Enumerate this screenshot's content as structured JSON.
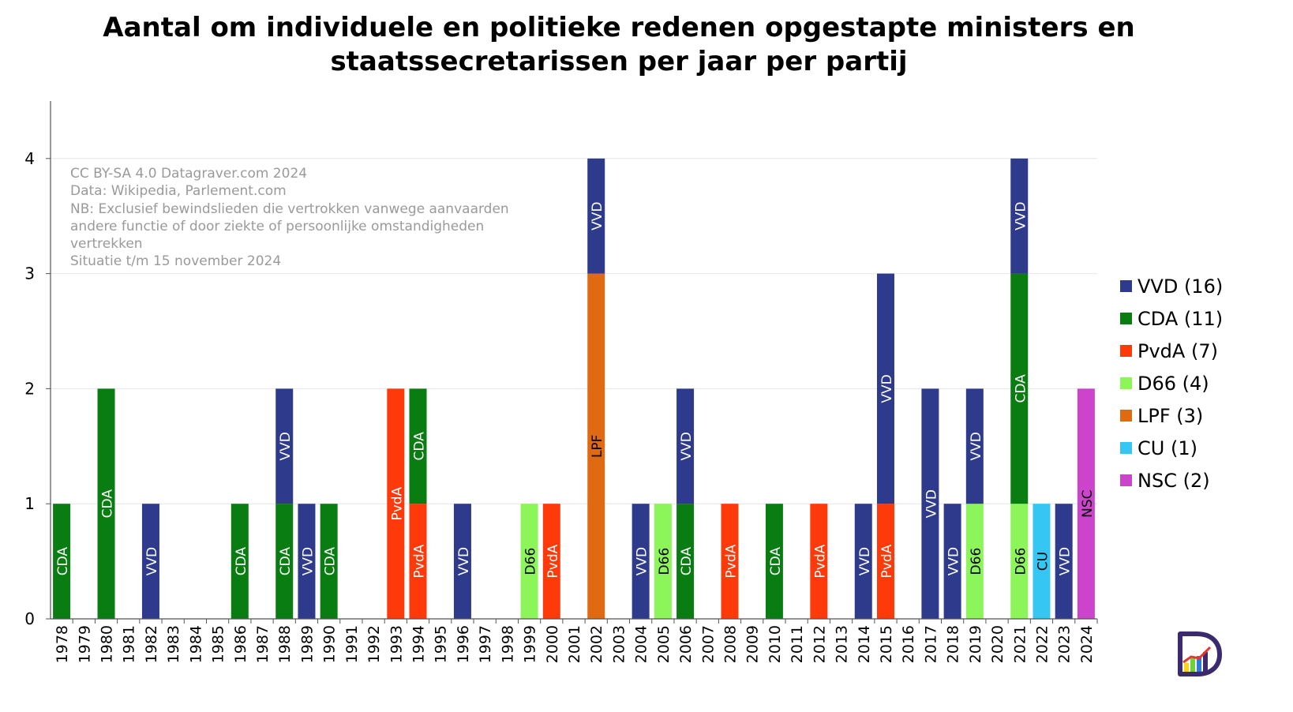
{
  "title": {
    "line1": "Aantal om individuele en politieke redenen opgestapte ministers en",
    "line2": "staatssecretarissen per jaar per partij"
  },
  "notes": [
    "CC BY-SA 4.0 Datagraver.com 2024",
    "Data: Wikipedia, Parlement.com",
    "NB: Exclusief bewindslieden die vertrokken vanwege aanvaarden",
    "andere functie of door ziekte of persoonlijke omstandigheden",
    "vertrekken",
    "Situatie t/m  15 november 2024"
  ],
  "legend": [
    {
      "party": "VVD",
      "label": "VVD (16)",
      "color": "#2e3a8c"
    },
    {
      "party": "CDA",
      "label": "CDA (11)",
      "color": "#0a7d12"
    },
    {
      "party": "PvdA",
      "label": "PvdA (7)",
      "color": "#ff3a0a"
    },
    {
      "party": "D66",
      "label": "D66 (4)",
      "color": "#8cf55a"
    },
    {
      "party": "LPF",
      "label": "LPF (3)",
      "color": "#e06a12"
    },
    {
      "party": "CU",
      "label": "CU (1)",
      "color": "#36c6f4"
    },
    {
      "party": "NSC",
      "label": "NSC (2)",
      "color": "#cc44cc"
    }
  ],
  "chart_data": {
    "type": "bar",
    "stacked": true,
    "categories": [
      "1978",
      "1979",
      "1980",
      "1981",
      "1982",
      "1983",
      "1984",
      "1985",
      "1986",
      "1987",
      "1988",
      "1989",
      "1990",
      "1991",
      "1992",
      "1993",
      "1994",
      "1995",
      "1996",
      "1997",
      "1998",
      "1999",
      "2000",
      "2001",
      "2002",
      "2003",
      "2004",
      "2005",
      "2006",
      "2007",
      "2008",
      "2009",
      "2010",
      "2011",
      "2012",
      "2013",
      "2014",
      "2015",
      "2016",
      "2017",
      "2018",
      "2019",
      "2020",
      "2021",
      "2022",
      "2023",
      "2024"
    ],
    "series": [
      {
        "name": "D66",
        "values": [
          0,
          0,
          0,
          0,
          0,
          0,
          0,
          0,
          0,
          0,
          0,
          0,
          0,
          0,
          0,
          0,
          0,
          0,
          0,
          0,
          0,
          1,
          0,
          0,
          0,
          0,
          0,
          1,
          0,
          0,
          0,
          0,
          0,
          0,
          0,
          0,
          0,
          0,
          0,
          0,
          0,
          1,
          0,
          1,
          0,
          0,
          0
        ]
      },
      {
        "name": "PvdA",
        "values": [
          0,
          0,
          0,
          0,
          0,
          0,
          0,
          0,
          0,
          0,
          0,
          0,
          0,
          0,
          0,
          2,
          1,
          0,
          0,
          0,
          0,
          0,
          1,
          0,
          0,
          0,
          0,
          0,
          0,
          0,
          1,
          0,
          0,
          0,
          1,
          0,
          0,
          1,
          0,
          0,
          0,
          0,
          0,
          0,
          0,
          0,
          0
        ]
      },
      {
        "name": "CDA",
        "values": [
          1,
          0,
          2,
          0,
          0,
          0,
          0,
          0,
          1,
          0,
          1,
          0,
          1,
          0,
          0,
          0,
          1,
          0,
          0,
          0,
          0,
          0,
          0,
          0,
          0,
          0,
          0,
          0,
          1,
          0,
          0,
          0,
          1,
          0,
          0,
          0,
          0,
          0,
          0,
          0,
          0,
          0,
          0,
          2,
          0,
          0,
          0
        ]
      },
      {
        "name": "LPF",
        "values": [
          0,
          0,
          0,
          0,
          0,
          0,
          0,
          0,
          0,
          0,
          0,
          0,
          0,
          0,
          0,
          0,
          0,
          0,
          0,
          0,
          0,
          0,
          0,
          0,
          3,
          0,
          0,
          0,
          0,
          0,
          0,
          0,
          0,
          0,
          0,
          0,
          0,
          0,
          0,
          0,
          0,
          0,
          0,
          0,
          0,
          0,
          0
        ]
      },
      {
        "name": "CU",
        "values": [
          0,
          0,
          0,
          0,
          0,
          0,
          0,
          0,
          0,
          0,
          0,
          0,
          0,
          0,
          0,
          0,
          0,
          0,
          0,
          0,
          0,
          0,
          0,
          0,
          0,
          0,
          0,
          0,
          0,
          0,
          0,
          0,
          0,
          0,
          0,
          0,
          0,
          0,
          0,
          0,
          0,
          0,
          0,
          0,
          1,
          0,
          0
        ]
      },
      {
        "name": "NSC",
        "values": [
          0,
          0,
          0,
          0,
          0,
          0,
          0,
          0,
          0,
          0,
          0,
          0,
          0,
          0,
          0,
          0,
          0,
          0,
          0,
          0,
          0,
          0,
          0,
          0,
          0,
          0,
          0,
          0,
          0,
          0,
          0,
          0,
          0,
          0,
          0,
          0,
          0,
          0,
          0,
          0,
          0,
          0,
          0,
          0,
          0,
          0,
          2
        ]
      },
      {
        "name": "VVD",
        "values": [
          0,
          0,
          0,
          0,
          1,
          0,
          0,
          0,
          0,
          0,
          1,
          1,
          0,
          0,
          0,
          0,
          0,
          0,
          1,
          0,
          0,
          0,
          0,
          0,
          1,
          0,
          1,
          0,
          1,
          0,
          0,
          0,
          0,
          0,
          0,
          0,
          1,
          2,
          0,
          2,
          1,
          1,
          0,
          1,
          0,
          1,
          0
        ]
      }
    ],
    "yticks": [
      0,
      1,
      2,
      3,
      4
    ],
    "ylim": [
      0,
      4.5
    ],
    "grid": true,
    "legend_position": "right"
  }
}
